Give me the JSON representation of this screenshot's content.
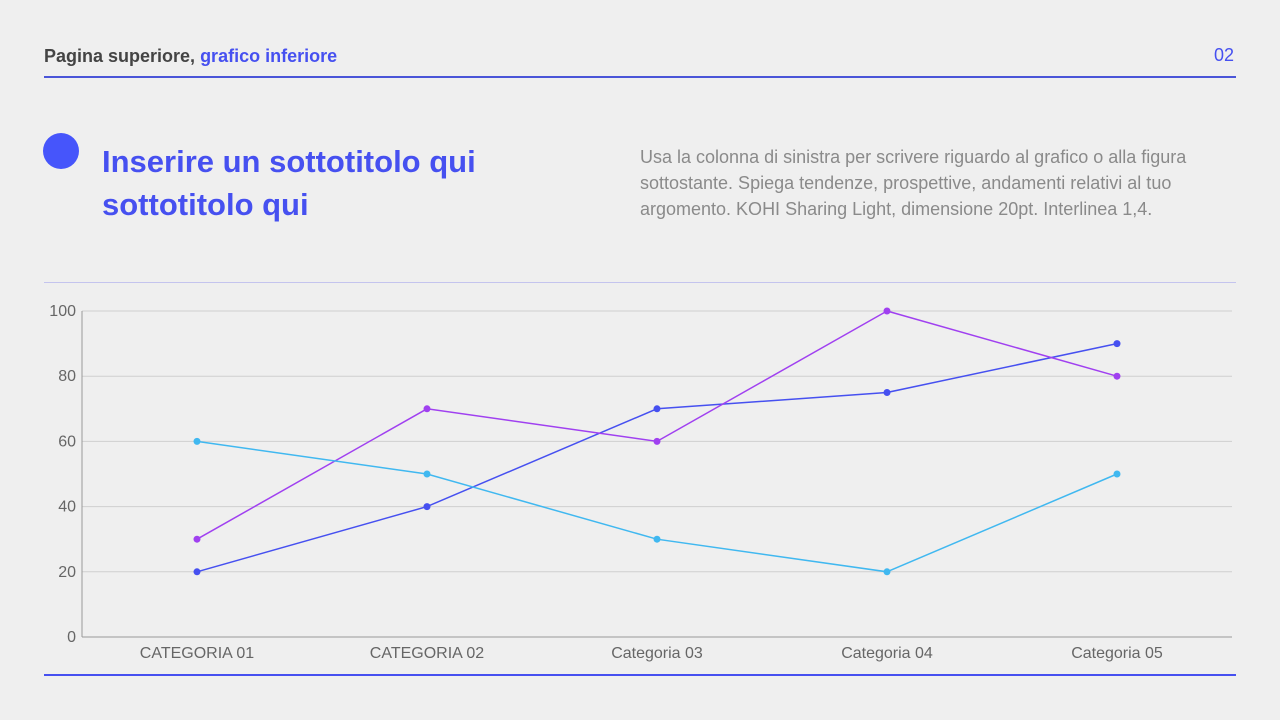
{
  "header": {
    "title_main": "Pagina superiore, ",
    "title_accent": "grafico inferiore",
    "page_number": "02"
  },
  "subtitle": "Inserire un sottotitolo qui sottotitolo qui",
  "description": "Usa la colonna di sinistra per scrivere riguardo al grafico o alla figura sottostante. Spiega tendenze, prospettive, andamenti relativi al tuo argomento. KOHI Sharing Light, dimensione 20pt. Interlinea 1,4.",
  "colors": {
    "accent": "#4650f0"
  },
  "chart_data": {
    "type": "line",
    "categories": [
      "CATEGORIA 01",
      "CATEGORIA 02",
      "Categoria 03",
      "Categoria 04",
      "Categoria 05"
    ],
    "series": [
      {
        "color": "#4650f0",
        "values": [
          20,
          40,
          70,
          75,
          90
        ]
      },
      {
        "color": "#a040f0",
        "values": [
          30,
          70,
          60,
          100,
          80
        ]
      },
      {
        "color": "#40b8f0",
        "values": [
          60,
          50,
          30,
          20,
          50
        ]
      }
    ],
    "yticks": [
      0,
      20,
      40,
      60,
      80,
      100
    ],
    "ylim": [
      0,
      100
    ],
    "grid": true,
    "legend": "none"
  }
}
